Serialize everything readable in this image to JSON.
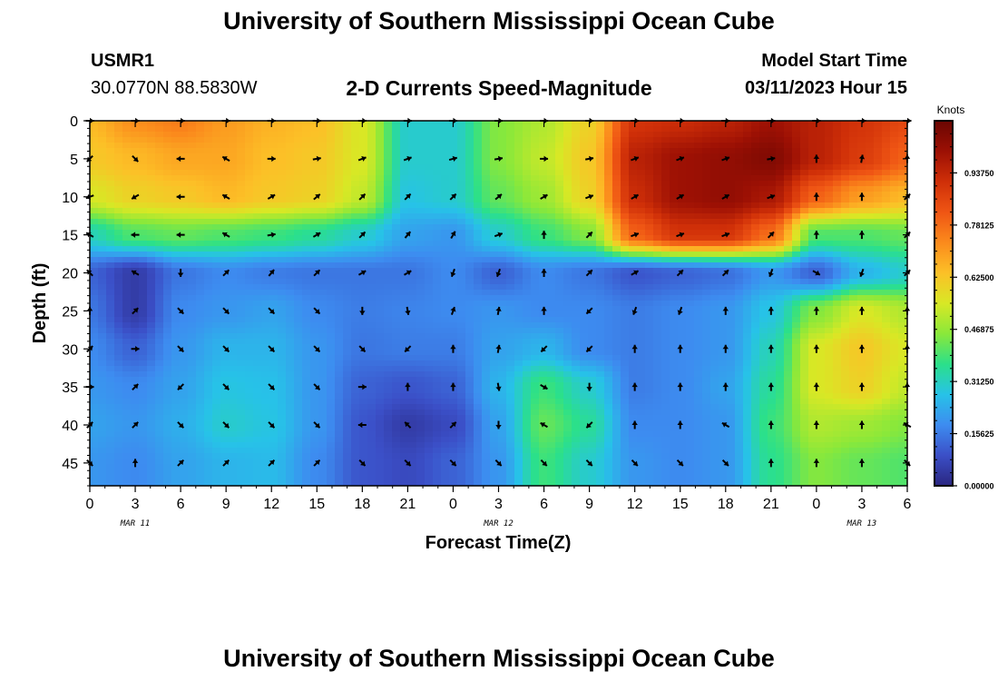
{
  "page": {
    "title": "University of Southern Mississippi Ocean Cube",
    "station_id": "USMR1",
    "coordinates": "30.0770N  88.5830W",
    "plot_title": "2-D Currents Speed-Magnitude",
    "model_start_label": "Model Start Time",
    "model_start_value": "03/11/2023 Hour 15",
    "footer_title": "University of Southern Mississippi Ocean Cube"
  },
  "chart_data": {
    "type": "heatmap",
    "xlabel": "Forecast Time(Z)",
    "ylabel": "Depth (ft)",
    "x_tick_labels": [
      "0",
      "3",
      "6",
      "9",
      "12",
      "15",
      "18",
      "21",
      "0",
      "3",
      "6",
      "9",
      "12",
      "15",
      "18",
      "21",
      "0",
      "3",
      "6"
    ],
    "x_range_hours": [
      0,
      54
    ],
    "y_tick_labels": [
      "0",
      "5",
      "10",
      "15",
      "20",
      "25",
      "30",
      "35",
      "40",
      "45"
    ],
    "y_range": [
      0,
      48
    ],
    "y_reversed": true,
    "date_labels": [
      {
        "text": "MAR 11",
        "hour": 3
      },
      {
        "text": "MAR 12",
        "hour": 27
      },
      {
        "text": "MAR 13",
        "hour": 51
      }
    ],
    "colorbar": {
      "title": "Knots",
      "range": [
        0,
        1.09375
      ],
      "tick_labels": [
        "0.00000",
        "0.15625",
        "0.31250",
        "0.46875",
        "0.62500",
        "0.78125",
        "0.93750"
      ],
      "colors": [
        "#2a2680",
        "#3b4fc7",
        "#3d8cf0",
        "#27c2e8",
        "#2be08a",
        "#8ae83a",
        "#d8e825",
        "#fcc027",
        "#fb8a1c",
        "#ef5514",
        "#cf2f08",
        "#9c1004",
        "#6a0602"
      ]
    },
    "arrow_hours": [
      0,
      3,
      6,
      9,
      12,
      15,
      18,
      21,
      24,
      27,
      30,
      33,
      36,
      39,
      42,
      45,
      48,
      51,
      54
    ],
    "arrow_depths": [
      0,
      5,
      10,
      15,
      20,
      25,
      30,
      35,
      40,
      45
    ],
    "speed_grid_knots": [
      [
        0.65,
        0.72,
        0.75,
        0.7,
        0.66,
        0.64,
        0.55,
        0.3,
        0.3,
        0.45,
        0.5,
        0.6,
        0.9,
        0.92,
        0.95,
        1.0,
        0.95,
        0.9,
        0.85
      ],
      [
        0.62,
        0.65,
        0.68,
        0.68,
        0.64,
        0.62,
        0.55,
        0.3,
        0.3,
        0.45,
        0.52,
        0.62,
        0.95,
        1.0,
        1.02,
        1.05,
        0.95,
        0.88,
        0.8
      ],
      [
        0.55,
        0.6,
        0.62,
        0.65,
        0.62,
        0.6,
        0.52,
        0.28,
        0.3,
        0.42,
        0.48,
        0.6,
        0.92,
        1.0,
        1.02,
        0.98,
        0.8,
        0.7,
        0.65
      ],
      [
        0.32,
        0.4,
        0.42,
        0.4,
        0.38,
        0.35,
        0.3,
        0.22,
        0.2,
        0.3,
        0.38,
        0.45,
        0.8,
        0.9,
        0.9,
        0.78,
        0.4,
        0.4,
        0.42
      ],
      [
        0.12,
        0.05,
        0.15,
        0.18,
        0.16,
        0.15,
        0.15,
        0.15,
        0.18,
        0.12,
        0.18,
        0.15,
        0.1,
        0.12,
        0.14,
        0.2,
        0.12,
        0.25,
        0.3
      ],
      [
        0.15,
        0.05,
        0.18,
        0.2,
        0.22,
        0.18,
        0.16,
        0.17,
        0.18,
        0.2,
        0.18,
        0.18,
        0.16,
        0.18,
        0.2,
        0.28,
        0.45,
        0.55,
        0.5
      ],
      [
        0.18,
        0.12,
        0.2,
        0.25,
        0.25,
        0.2,
        0.15,
        0.16,
        0.16,
        0.22,
        0.25,
        0.18,
        0.16,
        0.18,
        0.2,
        0.32,
        0.55,
        0.62,
        0.55
      ],
      [
        0.2,
        0.18,
        0.22,
        0.28,
        0.27,
        0.2,
        0.12,
        0.1,
        0.12,
        0.25,
        0.38,
        0.3,
        0.16,
        0.18,
        0.22,
        0.35,
        0.55,
        0.6,
        0.52
      ],
      [
        0.22,
        0.2,
        0.24,
        0.3,
        0.28,
        0.2,
        0.1,
        0.05,
        0.08,
        0.22,
        0.42,
        0.35,
        0.18,
        0.18,
        0.2,
        0.38,
        0.5,
        0.48,
        0.45
      ],
      [
        0.2,
        0.18,
        0.22,
        0.25,
        0.26,
        0.18,
        0.1,
        0.08,
        0.12,
        0.2,
        0.38,
        0.3,
        0.2,
        0.18,
        0.2,
        0.36,
        0.45,
        0.42,
        0.4
      ]
    ],
    "arrow_angle_deg": [
      [
        90,
        90,
        90,
        90,
        90,
        90,
        90,
        90,
        90,
        90,
        90,
        90,
        90,
        90,
        90,
        90,
        90,
        90,
        90
      ],
      [
        225,
        135,
        270,
        300,
        90,
        80,
        70,
        70,
        75,
        80,
        90,
        80,
        70,
        70,
        70,
        80,
        0,
        10,
        0
      ],
      [
        250,
        240,
        270,
        300,
        60,
        50,
        45,
        45,
        45,
        50,
        60,
        70,
        60,
        60,
        60,
        70,
        0,
        0,
        45
      ],
      [
        300,
        270,
        270,
        300,
        80,
        60,
        45,
        40,
        30,
        70,
        0,
        45,
        70,
        70,
        70,
        45,
        0,
        0,
        45
      ],
      [
        315,
        300,
        180,
        45,
        40,
        45,
        60,
        60,
        200,
        200,
        0,
        45,
        60,
        45,
        45,
        200,
        120,
        200,
        45
      ],
      [
        0,
        45,
        135,
        135,
        135,
        135,
        180,
        170,
        20,
        10,
        0,
        225,
        200,
        200,
        0,
        0,
        0,
        0,
        0
      ],
      [
        45,
        90,
        135,
        135,
        135,
        135,
        135,
        225,
        0,
        10,
        225,
        225,
        0,
        0,
        0,
        0,
        0,
        0,
        0
      ],
      [
        90,
        45,
        225,
        135,
        135,
        135,
        90,
        0,
        0,
        170,
        120,
        180,
        0,
        0,
        0,
        0,
        0,
        0,
        0
      ],
      [
        45,
        45,
        135,
        135,
        135,
        135,
        270,
        315,
        45,
        180,
        300,
        225,
        0,
        0,
        300,
        0,
        0,
        0,
        300
      ],
      [
        135,
        0,
        45,
        45,
        45,
        45,
        135,
        135,
        135,
        135,
        135,
        135,
        135,
        135,
        135,
        0,
        0,
        0,
        135
      ]
    ]
  }
}
